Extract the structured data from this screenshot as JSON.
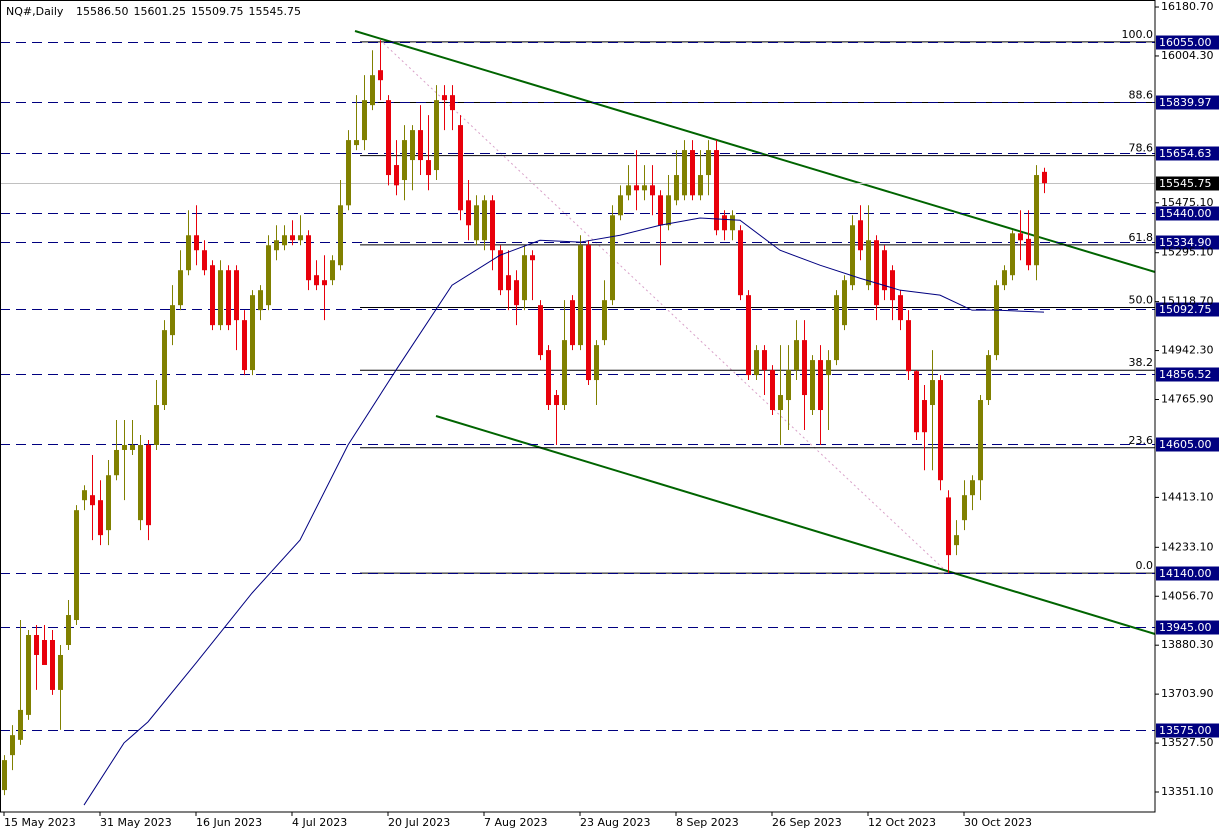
{
  "chart_data": {
    "type": "candlestick",
    "title": "NQ#,Daily",
    "header_ohlc": [
      {
        "value": 15586.5,
        "label": "15586.50"
      },
      {
        "value": 15601.25,
        "label": "15601.25"
      },
      {
        "value": 15509.75,
        "label": "15509.75"
      },
      {
        "value": 15545.75,
        "label": "15545.75"
      }
    ],
    "colors": {
      "up": "#808000",
      "down": "#e8000b",
      "average": "#000080",
      "level": "#000080",
      "fib": "#000000",
      "current": "#c0c0c0"
    },
    "categories": [
      "15 May 2023",
      null,
      null,
      null,
      null,
      null,
      null,
      null,
      null,
      null,
      null,
      null,
      "31 May 2023",
      null,
      null,
      null,
      null,
      null,
      null,
      null,
      null,
      null,
      null,
      null,
      "16 Jun 2023",
      null,
      null,
      null,
      null,
      null,
      null,
      null,
      null,
      null,
      null,
      null,
      "4 Jul 2023",
      null,
      null,
      null,
      null,
      null,
      null,
      null,
      null,
      null,
      null,
      null,
      "20 Jul 2023",
      null,
      null,
      null,
      null,
      null,
      null,
      null,
      null,
      null,
      null,
      null,
      "7 Aug 2023",
      null,
      null,
      null,
      null,
      null,
      null,
      null,
      null,
      null,
      null,
      null,
      "23 Aug 2023",
      null,
      null,
      null,
      null,
      null,
      null,
      null,
      null,
      null,
      null,
      null,
      "8 Sep 2023",
      null,
      null,
      null,
      null,
      null,
      null,
      null,
      null,
      null,
      null,
      null,
      "26 Sep 2023",
      null,
      null,
      null,
      null,
      null,
      null,
      null,
      null,
      null,
      null,
      null,
      "12 Oct 2023",
      null,
      null,
      null,
      null,
      null,
      null,
      null,
      null,
      null,
      null,
      null,
      "30 Oct 2023",
      null,
      null,
      null,
      null,
      null,
      null,
      null,
      null,
      null,
      null
    ],
    "candles": [
      [
        13358,
        13484,
        13340,
        13466
      ],
      [
        13484,
        13592,
        13430,
        13556
      ],
      [
        13539,
        13971,
        13521,
        13647
      ],
      [
        13629,
        13935,
        13611,
        13917
      ],
      [
        13917,
        13953,
        13719,
        13845
      ],
      [
        13899,
        13953,
        13813,
        13809
      ],
      [
        13899,
        13935,
        13701,
        13719
      ],
      [
        13719,
        13881,
        13575,
        13845
      ],
      [
        13881,
        14043,
        13863,
        13989
      ],
      [
        13971,
        14385,
        13953,
        14367
      ],
      [
        14403,
        14457,
        14367,
        14439
      ],
      [
        14421,
        14566,
        14259,
        14385
      ],
      [
        14403,
        14475,
        14241,
        14277
      ],
      [
        14295,
        14548,
        14241,
        14493
      ],
      [
        14493,
        14692,
        14475,
        14584
      ],
      [
        14584,
        14692,
        14403,
        14602
      ],
      [
        14584,
        14692,
        14566,
        14602
      ],
      [
        14331,
        14638,
        14295,
        14602
      ],
      [
        14602,
        14620,
        14259,
        14313
      ],
      [
        14602,
        14836,
        14584,
        14746
      ],
      [
        14746,
        15052,
        14728,
        15016
      ],
      [
        14998,
        15178,
        14962,
        15106
      ],
      [
        15106,
        15304,
        15088,
        15232
      ],
      [
        15232,
        15448,
        15214,
        15358
      ],
      [
        15358,
        15466,
        15250,
        15304
      ],
      [
        15304,
        15340,
        15214,
        15232
      ],
      [
        15250,
        15268,
        15016,
        15034
      ],
      [
        15034,
        15268,
        15016,
        15232
      ],
      [
        15232,
        15250,
        15016,
        15034
      ],
      [
        15232,
        15250,
        14944,
        15052
      ],
      [
        15052,
        15088,
        14854,
        14872
      ],
      [
        14872,
        15160,
        14854,
        15142
      ],
      [
        15088,
        15178,
        15052,
        15160
      ],
      [
        15106,
        15358,
        15088,
        15322
      ],
      [
        15304,
        15394,
        15268,
        15340
      ],
      [
        15322,
        15394,
        15304,
        15358
      ],
      [
        15358,
        15412,
        15322,
        15340
      ],
      [
        15340,
        15430,
        15322,
        15358
      ],
      [
        15358,
        15376,
        15160,
        15196
      ],
      [
        15214,
        15268,
        15160,
        15178
      ],
      [
        15196,
        15286,
        15052,
        15178
      ],
      [
        15196,
        15286,
        15178,
        15268
      ],
      [
        15250,
        15557,
        15232,
        15466
      ],
      [
        15466,
        15737,
        15448,
        15701
      ],
      [
        15683,
        15863,
        15665,
        15701
      ],
      [
        15701,
        15935,
        15665,
        15845
      ],
      [
        15827,
        16025,
        15809,
        15935
      ],
      [
        15953,
        16061,
        15845,
        15917
      ],
      [
        15845,
        15863,
        15538,
        15575
      ],
      [
        15611,
        15701,
        15502,
        15538
      ],
      [
        15557,
        15755,
        15484,
        15701
      ],
      [
        15629,
        15755,
        15520,
        15737
      ],
      [
        15737,
        15827,
        15575,
        15629
      ],
      [
        15629,
        15791,
        15520,
        15575
      ],
      [
        15593,
        15899,
        15557,
        15845
      ],
      [
        15863,
        15899,
        15737,
        15845
      ],
      [
        15863,
        15899,
        15737,
        15809
      ],
      [
        15755,
        15791,
        15412,
        15448
      ],
      [
        15484,
        15557,
        15340,
        15394
      ],
      [
        15340,
        15502,
        15322,
        15466
      ],
      [
        15340,
        15502,
        15304,
        15484
      ],
      [
        15484,
        15502,
        15232,
        15304
      ],
      [
        15304,
        15322,
        15142,
        15160
      ],
      [
        15214,
        15304,
        15088,
        15160
      ],
      [
        15196,
        15232,
        15034,
        15106
      ],
      [
        15124,
        15322,
        15088,
        15286
      ],
      [
        15286,
        15304,
        15124,
        15268
      ],
      [
        15106,
        15124,
        14908,
        14926
      ],
      [
        14944,
        14962,
        14728,
        14746
      ],
      [
        14782,
        14800,
        14602,
        14746
      ],
      [
        14746,
        15124,
        14728,
        14980
      ],
      [
        15124,
        15142,
        14944,
        14962
      ],
      [
        14962,
        15358,
        14944,
        15322
      ],
      [
        15322,
        15340,
        14818,
        14836
      ],
      [
        14836,
        14980,
        14746,
        14962
      ],
      [
        14980,
        15196,
        14962,
        15124
      ],
      [
        15124,
        15466,
        15106,
        15430
      ],
      [
        15430,
        15538,
        15412,
        15502
      ],
      [
        15502,
        15611,
        15484,
        15538
      ],
      [
        15538,
        15665,
        15448,
        15520
      ],
      [
        15520,
        15611,
        15484,
        15538
      ],
      [
        15538,
        15611,
        15430,
        15502
      ],
      [
        15502,
        15520,
        15250,
        15394
      ],
      [
        15394,
        15575,
        15376,
        15502
      ],
      [
        15484,
        15665,
        15466,
        15575
      ],
      [
        15502,
        15701,
        15484,
        15665
      ],
      [
        15665,
        15701,
        15484,
        15502
      ],
      [
        15502,
        15665,
        15484,
        15575
      ],
      [
        15575,
        15701,
        15502,
        15665
      ],
      [
        15665,
        15701,
        15358,
        15376
      ],
      [
        15430,
        15448,
        15340,
        15376
      ],
      [
        15376,
        15448,
        15340,
        15430
      ],
      [
        15376,
        15394,
        15124,
        15142
      ],
      [
        15142,
        15160,
        14836,
        14854
      ],
      [
        14854,
        14962,
        14836,
        14944
      ],
      [
        14944,
        14962,
        14782,
        14872
      ],
      [
        14872,
        14890,
        14710,
        14728
      ],
      [
        14728,
        14962,
        14602,
        14782
      ],
      [
        14764,
        14962,
        14656,
        14872
      ],
      [
        14872,
        15052,
        14836,
        14980
      ],
      [
        14980,
        15052,
        14656,
        14782
      ],
      [
        14728,
        14926,
        14710,
        14908
      ],
      [
        14908,
        14962,
        14602,
        14728
      ],
      [
        14854,
        14944,
        14656,
        14908
      ],
      [
        14908,
        15160,
        14890,
        15142
      ],
      [
        15034,
        15214,
        15016,
        15196
      ],
      [
        15178,
        15430,
        15160,
        15394
      ],
      [
        15412,
        15466,
        15268,
        15304
      ],
      [
        15178,
        15466,
        15160,
        15340
      ],
      [
        15340,
        15358,
        15052,
        15106
      ],
      [
        15304,
        15322,
        15124,
        15160
      ],
      [
        15232,
        15250,
        15052,
        15124
      ],
      [
        15142,
        15160,
        15016,
        15052
      ],
      [
        15052,
        15088,
        14836,
        14868
      ],
      [
        14868,
        14872,
        14620,
        14648
      ],
      [
        14764,
        14818,
        14511,
        14648
      ],
      [
        14746,
        14944,
        14511,
        14836
      ],
      [
        14836,
        14854,
        14439,
        14475
      ],
      [
        14413,
        14439,
        14140,
        14205
      ],
      [
        14241,
        14331,
        14205,
        14277
      ],
      [
        14331,
        14475,
        14295,
        14421
      ],
      [
        14421,
        14493,
        14367,
        14475
      ],
      [
        14475,
        14782,
        14403,
        14764
      ],
      [
        14764,
        14944,
        14746,
        14926
      ],
      [
        14926,
        15196,
        14908,
        15178
      ],
      [
        15178,
        15250,
        15160,
        15232
      ],
      [
        15214,
        15376,
        15196,
        15365
      ],
      [
        15365,
        15448,
        15268,
        15340
      ],
      [
        15345,
        15448,
        15232,
        15250
      ],
      [
        15250,
        15611,
        15196,
        15575
      ],
      [
        15586.5,
        15601.25,
        15509.75,
        15545.75
      ]
    ],
    "moving_average": {
      "x": [
        10,
        15,
        18,
        24,
        31,
        37,
        43,
        49,
        56,
        62,
        67,
        72,
        77,
        82,
        87,
        92,
        97,
        102,
        107,
        112,
        117,
        121,
        124,
        130
      ],
      "values": [
        13304,
        13528,
        13604,
        13816,
        14068,
        14259,
        14602,
        14872,
        15178,
        15286,
        15340,
        15333,
        15358,
        15394,
        15420,
        15412,
        15304,
        15250,
        15203,
        15160,
        15142,
        15088,
        15088,
        15081
      ]
    },
    "ylim": [
      13279,
      16206
    ],
    "yticks": [
      {
        "value": 16180.7,
        "label": "16180.70"
      },
      {
        "value": 16004.3,
        "label": "16004.30"
      },
      {
        "value": 15475.1,
        "label": "15475.10"
      },
      {
        "value": 15295.1,
        "label": "15295.10"
      },
      {
        "value": 15118.7,
        "label": "15118.70"
      },
      {
        "value": 14942.3,
        "label": "14942.30"
      },
      {
        "value": 14765.9,
        "label": "14765.90"
      },
      {
        "value": 14413.1,
        "label": "14413.10"
      },
      {
        "value": 14233.1,
        "label": "14233.10"
      },
      {
        "value": 14056.7,
        "label": "14056.70"
      },
      {
        "value": 13880.3,
        "label": "13880.30"
      },
      {
        "value": 13703.9,
        "label": "13703.90"
      },
      {
        "value": 13527.5,
        "label": "13527.50"
      },
      {
        "value": 13351.1,
        "label": "13351.10"
      }
    ],
    "levels": [
      {
        "value": 16055,
        "label": "16055.00"
      },
      {
        "value": 15839.97,
        "label": "15839.97"
      },
      {
        "value": 15654.63,
        "label": "15654.63"
      },
      {
        "value": 15440,
        "label": "15440.00"
      },
      {
        "value": 15334.9,
        "label": "15334.90"
      },
      {
        "value": 15092.75,
        "label": "15092.75"
      },
      {
        "value": 14856.52,
        "label": "14856.52"
      },
      {
        "value": 14605,
        "label": "14605.00"
      },
      {
        "value": 14140,
        "label": "14140.00"
      },
      {
        "value": 13945,
        "label": "13945.00"
      },
      {
        "value": 13575,
        "label": "13575.00"
      }
    ],
    "current_price": {
      "value": 15545.75,
      "label": "15545.75"
    },
    "fibonacci": {
      "range": [
        14140,
        16055
      ],
      "levels": [
        {
          "value": 100,
          "label": "100.0"
        },
        {
          "value": 88.6,
          "label": "88.6"
        },
        {
          "value": 78.6,
          "label": "78.6"
        },
        {
          "value": 61.8,
          "label": "61.8"
        },
        {
          "value": 50,
          "label": "50.0"
        },
        {
          "value": 38.2,
          "label": "38.2"
        },
        {
          "value": 23.6,
          "label": "23.6"
        },
        {
          "value": 0,
          "label": "0.0"
        }
      ]
    }
  }
}
